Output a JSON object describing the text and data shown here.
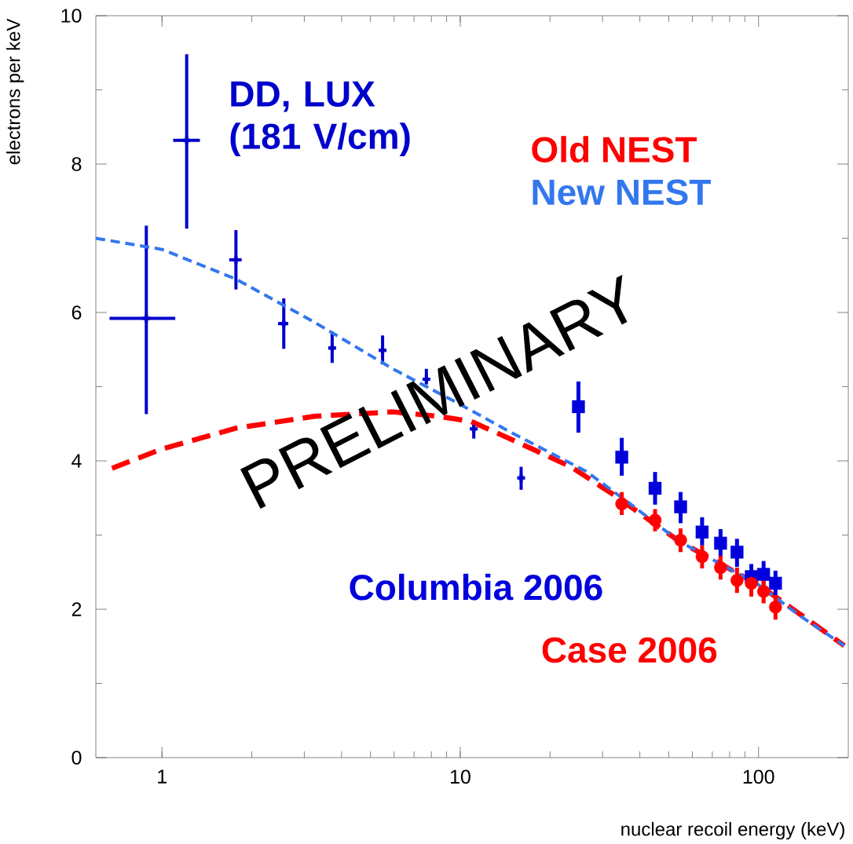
{
  "chart_data": {
    "type": "scatter",
    "xlabel": "nuclear recoil energy (keV)",
    "ylabel": "electrons per keV",
    "log": "x",
    "xlim": [
      0.6,
      200
    ],
    "ylim": [
      0,
      10
    ],
    "xticks": [
      1,
      10,
      100
    ],
    "yticks": [
      0,
      2,
      4,
      6,
      8,
      10
    ],
    "annotations": [
      "PRELIMINARY"
    ],
    "series": [
      {
        "name": "DD, LUX (181 V/cm)",
        "marker": "cross",
        "color": "#0000cc",
        "x": [
          0.886,
          1.21,
          1.77,
          2.56,
          3.72,
          5.49,
          7.7,
          11.1,
          16.0
        ],
        "values": [
          5.92,
          8.32,
          6.71,
          5.85,
          5.52,
          5.49,
          5.1,
          4.43,
          3.77
        ],
        "errors": [
          [
            4.63,
            7.17
          ],
          [
            7.13,
            9.48
          ],
          [
            6.31,
            7.11
          ],
          [
            5.51,
            6.19
          ],
          [
            5.32,
            5.74
          ],
          [
            5.3,
            5.69
          ],
          [
            5.03,
            5.24
          ],
          [
            4.3,
            4.55
          ],
          [
            3.61,
            3.92
          ]
        ],
        "xerrors": [
          [
            0.667,
            1.108
          ],
          [
            1.09,
            1.34
          ],
          [
            1.68,
            1.85
          ],
          [
            2.45,
            2.65
          ],
          [
            3.62,
            3.82
          ],
          [
            5.36,
            5.62
          ],
          [
            7.51,
            7.89
          ],
          [
            10.83,
            11.37
          ],
          [
            15.6,
            16.4
          ]
        ]
      },
      {
        "name": "Old NEST",
        "type": "line",
        "line_style": "dashed",
        "marker": "none",
        "color": "#ff0000",
        "x": [
          0.68,
          1,
          1.77,
          3.24,
          5.94,
          8.5,
          10.9,
          15.6,
          23.5,
          32.5,
          54.5,
          100,
          194
        ],
        "values": [
          3.9,
          4.16,
          4.44,
          4.6,
          4.66,
          4.6,
          4.53,
          4.25,
          3.92,
          3.55,
          2.91,
          2.33,
          1.51
        ]
      },
      {
        "name": "New NEST",
        "type": "line",
        "line_style": "dotted",
        "marker": "none",
        "color": "#3377ee",
        "x": [
          0.6,
          1,
          1.77,
          3.24,
          5.94,
          10,
          14.7,
          26.4,
          36.6,
          54.5,
          100,
          139,
          194
        ],
        "values": [
          7.0,
          6.85,
          6.45,
          5.87,
          5.24,
          4.76,
          4.39,
          3.86,
          3.44,
          2.91,
          2.33,
          1.9,
          1.51
        ]
      },
      {
        "name": "Columbia 2006",
        "marker": "square",
        "color": "#0000dd",
        "x": [
          24.9,
          34.8,
          45,
          54.8,
          64.7,
          74.6,
          84.7,
          94.6,
          104,
          114
        ],
        "values": [
          4.73,
          4.05,
          3.63,
          3.38,
          3.04,
          2.89,
          2.77,
          2.44,
          2.47,
          2.35
        ],
        "errors": [
          [
            4.38,
            5.07
          ],
          [
            3.8,
            4.31
          ],
          [
            3.41,
            3.85
          ],
          [
            3.16,
            3.58
          ],
          [
            2.86,
            3.24
          ],
          [
            2.7,
            3.08
          ],
          [
            2.57,
            2.95
          ],
          [
            2.3,
            2.61
          ],
          [
            2.28,
            2.65
          ],
          [
            2.19,
            2.52
          ]
        ]
      },
      {
        "name": "Case 2006",
        "marker": "circle",
        "color": "#ff0000",
        "x": [
          34.8,
          45,
          54.8,
          64.7,
          74.6,
          84.7,
          94.6,
          104,
          114
        ],
        "values": [
          3.42,
          3.2,
          2.93,
          2.71,
          2.56,
          2.39,
          2.35,
          2.24,
          2.03
        ],
        "errors": [
          [
            3.27,
            3.58
          ],
          [
            3.05,
            3.35
          ],
          [
            2.77,
            3.09
          ],
          [
            2.55,
            2.86
          ],
          [
            2.4,
            2.72
          ],
          [
            2.22,
            2.56
          ],
          [
            2.17,
            2.51
          ],
          [
            2.08,
            2.4
          ],
          [
            1.86,
            2.19
          ]
        ]
      }
    ]
  }
}
